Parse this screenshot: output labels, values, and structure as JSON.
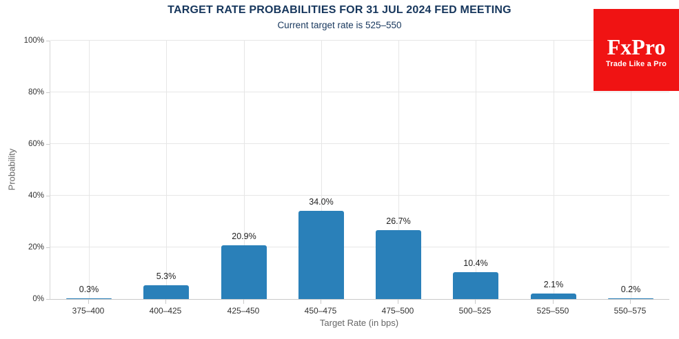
{
  "chart_data": {
    "type": "bar",
    "title": "TARGET RATE PROBABILITIES FOR 31 JUL 2024 FED MEETING",
    "subtitle": "Current target rate is 525–550",
    "categories": [
      "375–400",
      "400–425",
      "425–450",
      "450–475",
      "475–500",
      "500–525",
      "525–550",
      "550–575"
    ],
    "values": [
      0.3,
      5.3,
      20.9,
      34.0,
      26.7,
      10.4,
      2.1,
      0.2
    ],
    "value_labels": [
      "0.3%",
      "5.3%",
      "20.9%",
      "34.0%",
      "26.7%",
      "10.4%",
      "2.1%",
      "0.2%"
    ],
    "xlabel": "Target Rate (in bps)",
    "ylabel": "Probability",
    "ylim": [
      0,
      100
    ],
    "ytick_step": 20,
    "ytick_labels": [
      "0%",
      "20%",
      "40%",
      "60%",
      "80%",
      "100%"
    ],
    "grid": "horizontal at 20% steps, vertical at category centers",
    "legend": "none"
  },
  "colors": {
    "bar": "#2a80b9",
    "title": "#16365c",
    "grid": "#e6e6e6",
    "axis": "#c9c9c9",
    "tick_text": "#333333",
    "axis_title_text": "#666666",
    "logo_bg": "#f01313",
    "logo_text": "#ffffff"
  },
  "logo": {
    "name": "FxPro",
    "tagline": "Trade Like a Pro"
  }
}
